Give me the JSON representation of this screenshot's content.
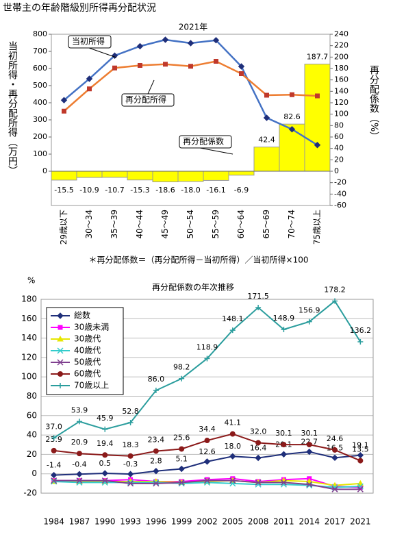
{
  "page_title": "世帯主の年齢階級別所得再分配状況",
  "chart_data": [
    {
      "type": "combo",
      "title": "2021年",
      "categories": [
        "29歳以下",
        "30～34",
        "35～39",
        "40～44",
        "45～49",
        "50～54",
        "55～59",
        "60～64",
        "65～69",
        "70～74",
        "75歳以上"
      ],
      "ylabel": "当初所得・再分配所得（万円）",
      "y2label": "再分配係数（%）",
      "ylim": [
        -200,
        800
      ],
      "yticks": [
        0,
        100,
        200,
        300,
        400,
        500,
        600,
        700,
        800
      ],
      "y2lim": [
        -60,
        240
      ],
      "y2ticks": [
        -60,
        -40,
        -20,
        0,
        20,
        40,
        60,
        80,
        100,
        120,
        140,
        160,
        180,
        200,
        220,
        240
      ],
      "series": [
        {
          "name": "再分配係数",
          "kind": "bar",
          "axis": "y2",
          "color": "#ffff00",
          "values": [
            -15.5,
            -10.9,
            -10.7,
            -15.3,
            -18.6,
            -18.0,
            -16.1,
            -6.9,
            42.4,
            82.6,
            187.7
          ],
          "value_labels": [
            "-15.5",
            "-10.9",
            "-10.7",
            "-15.3",
            "-18.6",
            "-18.0",
            "-16.1",
            "-6.9",
            "42.4",
            "82.6",
            "187.7"
          ]
        },
        {
          "name": "当初所得",
          "kind": "line",
          "color": "#4472c4",
          "marker": "diamond",
          "values": [
            415,
            540,
            675,
            730,
            768,
            748,
            765,
            612,
            312,
            245,
            153
          ]
        },
        {
          "name": "再分配所得",
          "kind": "line",
          "color": "#ed7d31",
          "marker": "square",
          "values": [
            351,
            481,
            603,
            618,
            625,
            613,
            642,
            570,
            444,
            447,
            440
          ]
        }
      ],
      "note": "＊再分配係数＝（再分配所得－当初所得）／当初所得×100"
    },
    {
      "type": "line",
      "title": "再分配係数の年次推移",
      "ylabel": "%",
      "categories": [
        "1984",
        "1987",
        "1990",
        "1993",
        "1996",
        "1999",
        "2002",
        "2005",
        "2008",
        "2011",
        "2014",
        "2017",
        "2021"
      ],
      "ylim": [
        -20,
        180
      ],
      "yticks": [
        -20,
        0,
        20,
        40,
        60,
        80,
        100,
        120,
        140,
        160,
        180
      ],
      "grid": true,
      "legend": "top-left",
      "series": [
        {
          "name": "総数",
          "color": "#1f2f7a",
          "marker": "diamond",
          "values": [
            -1.4,
            -0.4,
            0.5,
            -0.3,
            2.8,
            5.1,
            12.6,
            18.0,
            16.4,
            20.1,
            22.7,
            16.5,
            19.1
          ],
          "value_labels": [
            "-1.4",
            "-0.4",
            "0.5",
            "-0.3",
            "2.8",
            "5.1",
            "12.6",
            "18.0",
            "16.4",
            "20.1",
            "22.7",
            "16.5",
            "19.1"
          ]
        },
        {
          "name": "30歳未満",
          "color": "#ff00ff",
          "marker": "square",
          "values": [
            -7,
            -7,
            -7,
            -6,
            -8,
            -8,
            -6,
            -5,
            -8,
            -6,
            -5,
            -13,
            -14
          ]
        },
        {
          "name": "30歳代",
          "color": "#e6e600",
          "marker": "triangle",
          "values": [
            -8,
            -8,
            -8,
            -8,
            -8,
            -9,
            -8,
            -7,
            -9,
            -7,
            -8,
            -12,
            -10
          ]
        },
        {
          "name": "40歳代",
          "color": "#33cccc",
          "marker": "x",
          "values": [
            -8,
            -9,
            -9,
            -9,
            -9,
            -10,
            -9,
            -10,
            -11,
            -11,
            -12,
            -14,
            -13
          ]
        },
        {
          "name": "50歳代",
          "color": "#7f3f8f",
          "marker": "x",
          "values": [
            -7,
            -7,
            -7,
            -10,
            -10,
            -9,
            -7,
            -7,
            -9,
            -9,
            -11,
            -16,
            -16
          ]
        },
        {
          "name": "60歳代",
          "color": "#8b1a1a",
          "marker": "circle",
          "values": [
            23.9,
            20.9,
            19.4,
            18.3,
            23.4,
            25.6,
            34.4,
            41.1,
            32.0,
            30.1,
            30.1,
            24.6,
            13.5
          ],
          "value_labels": [
            "23.9",
            "20.9",
            "19.4",
            "18.3",
            "23.4",
            "25.6",
            "34.4",
            "41.1",
            "32.0",
            "30.1",
            "30.1",
            "24.6",
            "13.5"
          ]
        },
        {
          "name": "70歳以上",
          "color": "#2a9d9d",
          "marker": "plus",
          "values": [
            37.0,
            53.9,
            45.9,
            52.8,
            86.0,
            98.2,
            118.9,
            148.1,
            171.5,
            148.9,
            156.9,
            178.2,
            136.2
          ],
          "value_labels": [
            "37.0",
            "53.9",
            "45.9",
            "52.8",
            "86.0",
            "98.2",
            "118.9",
            "148.1",
            "171.5",
            "148.9",
            "156.9",
            "178.2",
            "136.2"
          ]
        }
      ]
    }
  ]
}
